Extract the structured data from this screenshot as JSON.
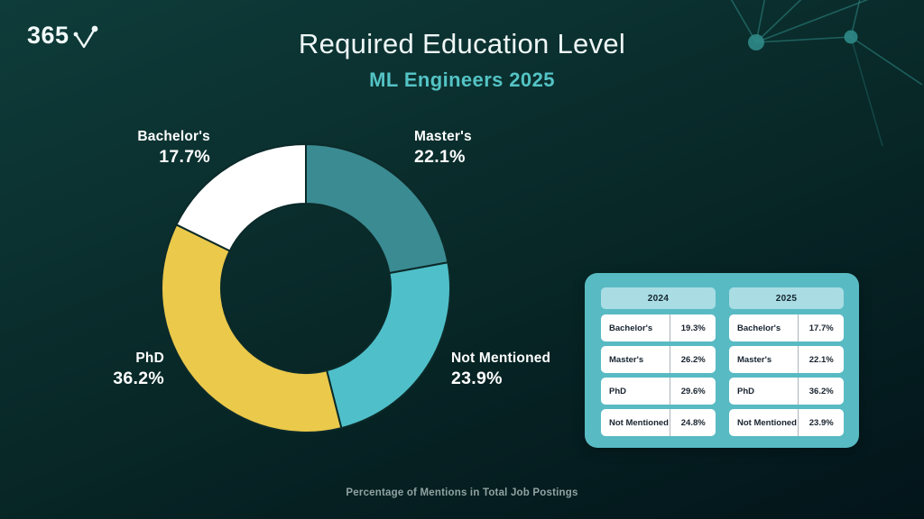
{
  "brand": {
    "logo_text": "365"
  },
  "header": {
    "title": "Required Education Level",
    "subtitle": "ML Engineers 2025"
  },
  "footer": {
    "caption": "Percentage of Mentions in Total Job Postings"
  },
  "chart_data": {
    "type": "pie",
    "variant": "donut",
    "title": "Required Education Level",
    "subtitle": "ML Engineers 2025",
    "unit": "%",
    "categories": [
      "Bachelor's",
      "Master's",
      "PhD",
      "Not Mentioned"
    ],
    "series": [
      {
        "name": "2024",
        "values": [
          19.3,
          26.2,
          29.6,
          24.8
        ]
      },
      {
        "name": "2025",
        "values": [
          17.7,
          22.1,
          36.2,
          23.9
        ]
      }
    ],
    "caption": "Percentage of Mentions in Total Job Postings",
    "legend_position": "callout-labels-around-donut",
    "donut": {
      "year_shown": "2025",
      "start": "top",
      "direction": "clockwise",
      "segments": [
        {
          "label": "Master's",
          "value": 22.1,
          "display": "22.1%",
          "color": "#3b8b92"
        },
        {
          "label": "Not Mentioned",
          "value": 23.9,
          "display": "23.9%",
          "color": "#4fc0ca"
        },
        {
          "label": "PhD",
          "value": 36.2,
          "display": "36.2%",
          "color": "#eac94b"
        },
        {
          "label": "Bachelor's",
          "value": 17.7,
          "display": "17.7%",
          "color": "#ffffff"
        }
      ]
    }
  },
  "table": {
    "columns": [
      {
        "year": "2024",
        "rows": [
          {
            "label": "Bachelor's",
            "value": "19.3%"
          },
          {
            "label": "Master's",
            "value": "26.2%"
          },
          {
            "label": "PhD",
            "value": "29.6%"
          },
          {
            "label": "Not Mentioned",
            "value": "24.8%"
          }
        ]
      },
      {
        "year": "2025",
        "rows": [
          {
            "label": "Bachelor's",
            "value": "17.7%"
          },
          {
            "label": "Master's",
            "value": "22.1%"
          },
          {
            "label": "PhD",
            "value": "36.2%"
          },
          {
            "label": "Not Mentioned",
            "value": "23.9%"
          }
        ]
      }
    ]
  },
  "colors": {
    "background_top": "#0e3c3a",
    "background_bottom": "#03151a",
    "accent_teal": "#4fc0ca",
    "dark_teal": "#3b8b92",
    "yellow": "#eac94b",
    "white": "#ffffff",
    "table_panel": "#58bac3",
    "table_header": "#a9dde3",
    "subtitle_text": "#54c3c5",
    "caption_text": "#90a3a2",
    "network_lines": "#2f8a87",
    "segment_divider": "#0c2a2a"
  }
}
